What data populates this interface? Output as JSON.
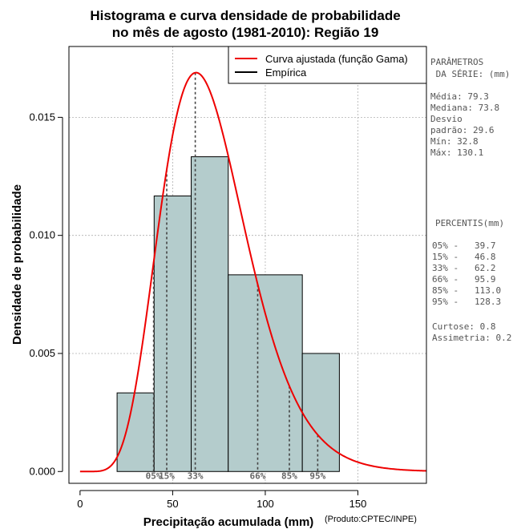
{
  "chart_data": {
    "type": "histogram",
    "title_lines": [
      "Histograma e curva densidade de probabilidade",
      "no mês de agosto (1981-2010): Região 19"
    ],
    "xlabel": "Precipitação acumulada (mm)",
    "ylabel": "Densidade de probabilidade",
    "credit": "(Produto:CPTEC/INPE)",
    "xlim": [
      -6,
      187
    ],
    "ylim": [
      -0.0005,
      0.018
    ],
    "x_ticks": [
      0,
      50,
      100,
      150
    ],
    "y_ticks": [
      0.0,
      0.005,
      0.01,
      0.015
    ],
    "y_tick_labels": [
      "0.000",
      "0.005",
      "0.010",
      "0.015"
    ],
    "bins": [
      {
        "start": 20,
        "end": 40,
        "density": 0.00333
      },
      {
        "start": 40,
        "end": 60,
        "density": 0.01167
      },
      {
        "start": 60,
        "end": 80,
        "density": 0.01333
      },
      {
        "start": 80,
        "end": 120,
        "density": 0.00833
      },
      {
        "start": 120,
        "end": 140,
        "density": 0.005
      }
    ],
    "bar_color": "#b4cccc",
    "curve": {
      "name": "Curva ajustada (função Gama)",
      "color": "#ee0000",
      "distribution": "gamma",
      "shape": 8.2,
      "scale": 8.7
    },
    "empirical": {
      "name": "Empírica",
      "color": "#000000"
    },
    "percentile_markers": [
      {
        "label": "05%",
        "value": 39.7
      },
      {
        "label": "15%",
        "value": 46.8
      },
      {
        "label": "33%",
        "value": 62.2
      },
      {
        "label": "66%",
        "value": 95.9
      },
      {
        "label": "85%",
        "value": 113.0
      },
      {
        "label": "95%",
        "value": 128.3
      }
    ],
    "legend_position": "top-right"
  },
  "side_panel": {
    "params_title": [
      "PARÂMETROS",
      " DA SÉRIE: (mm)"
    ],
    "params": [
      "Média:  79.3",
      "Mediana:  73.8",
      "Desvio",
      "padrão:  29.6",
      "Mín:  32.8",
      "Máx:  130.1"
    ],
    "percentis_title": "PERCENTIS(mm)",
    "percentis": [
      "05% -   39.7",
      "15% -   46.8",
      "33% -   62.2",
      "66% -   95.9",
      "85% -   113.0",
      "95% -   128.3"
    ],
    "stats": [
      "Curtose:  0.8",
      "Assimetria:  0.2"
    ]
  }
}
